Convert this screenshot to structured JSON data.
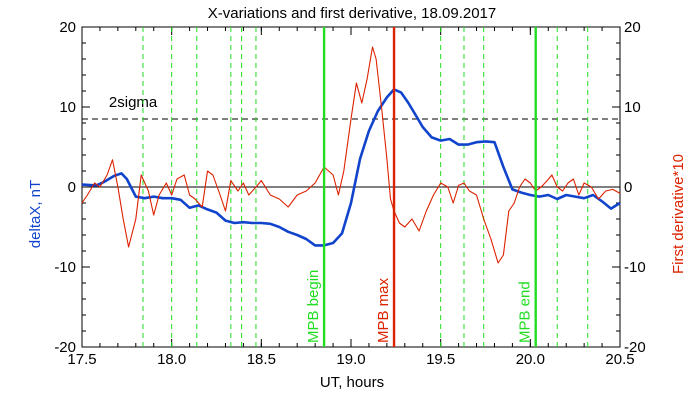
{
  "chart_data": {
    "type": "line",
    "title": "X-variations and first derivative, 18.09.2017",
    "xlabel": "UT, hours",
    "ylabel_left": "deltaX, nT",
    "ylabel_right": "First derivative*10",
    "xlim": [
      17.5,
      20.5
    ],
    "ylim": [
      -20,
      20
    ],
    "x_ticks": [
      "17.5",
      "18.0",
      "18.5",
      "19.0",
      "19.5",
      "20.0",
      "20.5"
    ],
    "y_ticks_left": [
      "20",
      "10",
      "0",
      "-10",
      "-20"
    ],
    "y_ticks_right": [
      "20",
      "10",
      "0",
      "-10",
      "-20"
    ],
    "threshold": {
      "label": "2sigma",
      "y": 8.5
    },
    "zero_line": 0,
    "dashed_markers_x": [
      17.84,
      18.0,
      18.14,
      18.33,
      18.39,
      18.47,
      19.5,
      19.63,
      19.74,
      20.15,
      20.32
    ],
    "event_lines": [
      {
        "label": "MPB begin",
        "x": 18.85,
        "color": "#22dd22"
      },
      {
        "label": "MPB max",
        "x": 19.24,
        "color": "#dd2200"
      },
      {
        "label": "MPB end",
        "x": 20.03,
        "color": "#22dd22"
      }
    ],
    "series": [
      {
        "role": "deltaX",
        "color": "#1144cc",
        "x": [
          17.5,
          17.58,
          17.62,
          17.68,
          17.72,
          17.75,
          17.8,
          17.85,
          17.9,
          17.95,
          18.0,
          18.05,
          18.1,
          18.15,
          18.2,
          18.25,
          18.3,
          18.35,
          18.4,
          18.45,
          18.5,
          18.55,
          18.6,
          18.65,
          18.7,
          18.75,
          18.8,
          18.85,
          18.9,
          18.95,
          19.0,
          19.05,
          19.1,
          19.15,
          19.2,
          19.24,
          19.28,
          19.32,
          19.36,
          19.4,
          19.45,
          19.5,
          19.55,
          19.6,
          19.65,
          19.7,
          19.75,
          19.8,
          19.85,
          19.9,
          19.95,
          20.0,
          20.05,
          20.1,
          20.15,
          20.2,
          20.25,
          20.3,
          20.35,
          20.4,
          20.45,
          20.5
        ],
        "y": [
          0.3,
          0.2,
          0.6,
          1.4,
          1.7,
          1.0,
          -1.2,
          -1.4,
          -1.2,
          -1.4,
          -1.4,
          -1.6,
          -2.6,
          -2.3,
          -2.8,
          -3.2,
          -4.2,
          -4.5,
          -4.4,
          -4.5,
          -4.5,
          -4.6,
          -5.0,
          -5.6,
          -6.0,
          -6.5,
          -7.3,
          -7.3,
          -7.0,
          -5.8,
          -2.0,
          3.5,
          7.0,
          9.5,
          11.2,
          12.2,
          11.8,
          10.5,
          9.0,
          7.5,
          6.2,
          5.8,
          6.0,
          5.3,
          5.3,
          5.6,
          5.7,
          5.6,
          2.5,
          -0.3,
          -0.7,
          -1.0,
          -1.2,
          -1.0,
          -1.5,
          -1.0,
          -1.2,
          -1.4,
          -1.0,
          -1.8,
          -2.7,
          -2.0
        ]
      },
      {
        "role": "first derivative",
        "color": "#dd2200",
        "x": [
          17.5,
          17.53,
          17.57,
          17.6,
          17.64,
          17.67,
          17.7,
          17.73,
          17.76,
          17.8,
          17.83,
          17.87,
          17.9,
          17.93,
          17.97,
          18.0,
          18.03,
          18.07,
          18.1,
          18.13,
          18.17,
          18.2,
          18.23,
          18.27,
          18.3,
          18.33,
          18.37,
          18.4,
          18.43,
          18.47,
          18.5,
          18.55,
          18.6,
          18.65,
          18.7,
          18.75,
          18.8,
          18.85,
          18.9,
          18.93,
          18.96,
          19.0,
          19.03,
          19.06,
          19.09,
          19.12,
          19.14,
          19.17,
          19.2,
          19.22,
          19.24,
          19.27,
          19.3,
          19.34,
          19.38,
          19.42,
          19.46,
          19.5,
          19.54,
          19.57,
          19.6,
          19.63,
          19.66,
          19.7,
          19.74,
          19.78,
          19.82,
          19.85,
          19.88,
          19.91,
          19.94,
          19.97,
          20.0,
          20.03,
          20.06,
          20.09,
          20.12,
          20.15,
          20.18,
          20.21,
          20.24,
          20.27,
          20.3,
          20.34,
          20.38,
          20.42,
          20.46,
          20.5
        ],
        "y": [
          -2.0,
          -1.0,
          0.5,
          0.0,
          1.5,
          3.4,
          0.0,
          -4.0,
          -7.5,
          -4.0,
          1.5,
          -0.5,
          -3.5,
          -1.0,
          0.5,
          -1.0,
          1.0,
          1.5,
          -1.0,
          -1.5,
          -2.5,
          2.0,
          1.5,
          -1.0,
          -3.0,
          0.8,
          -0.5,
          0.5,
          -1.0,
          0.0,
          0.8,
          -1.0,
          -1.5,
          -2.5,
          -1.0,
          -0.5,
          0.5,
          2.5,
          1.5,
          -1.0,
          2.0,
          8.5,
          13.0,
          10.5,
          13.5,
          17.5,
          16.0,
          10.0,
          3.5,
          -1.5,
          -3.0,
          -4.5,
          -5.0,
          -4.0,
          -5.5,
          -3.0,
          -1.0,
          0.5,
          0.0,
          -2.0,
          0.2,
          0.5,
          -0.5,
          -1.0,
          -4.0,
          -6.5,
          -9.5,
          -8.5,
          -3.0,
          -2.0,
          0.0,
          1.0,
          0.5,
          -0.5,
          0.0,
          0.7,
          1.5,
          0.0,
          -0.5,
          0.5,
          1.0,
          -1.0,
          0.5,
          0.0,
          -1.5,
          -0.5,
          -0.3,
          -0.8
        ]
      }
    ]
  }
}
